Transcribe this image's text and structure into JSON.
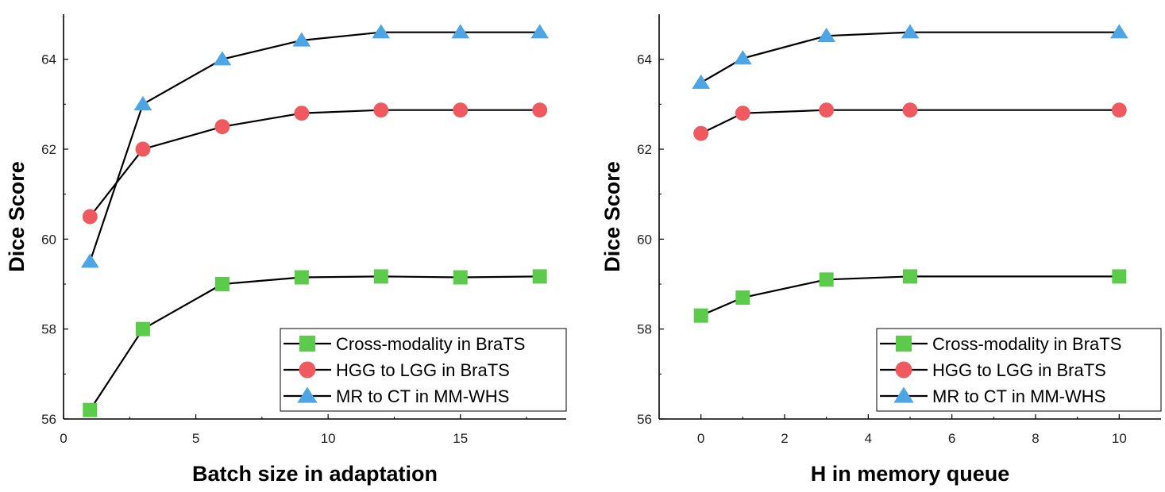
{
  "chart_data": [
    {
      "type": "line",
      "xlabel": "Batch size in adaptation",
      "ylabel": "Dice Score",
      "xlim": [
        0,
        19
      ],
      "ylim": [
        56,
        65
      ],
      "xticks": [
        0,
        5,
        10,
        15
      ],
      "yticks": [
        56,
        58,
        60,
        62,
        64
      ],
      "legend_position": "bottom-right",
      "series": [
        {
          "name": "Cross-modality in BraTS",
          "marker": "square",
          "color": "#5CCB4C",
          "x": [
            1,
            3,
            6,
            9,
            12,
            15,
            18
          ],
          "y": [
            56.2,
            58.0,
            59.0,
            59.15,
            59.17,
            59.15,
            59.17
          ]
        },
        {
          "name": "HGG to LGG in BraTS",
          "marker": "circle",
          "color": "#EE5A5F",
          "x": [
            1,
            3,
            6,
            9,
            12,
            15,
            18
          ],
          "y": [
            60.5,
            62.0,
            62.5,
            62.8,
            62.87,
            62.87,
            62.87
          ]
        },
        {
          "name": "MR to CT in MM-WHS",
          "marker": "triangle",
          "color": "#4DA6E3",
          "x": [
            1,
            3,
            6,
            9,
            12,
            15,
            18
          ],
          "y": [
            59.5,
            63.0,
            64.0,
            64.42,
            64.6,
            64.6,
            64.6
          ]
        }
      ]
    },
    {
      "type": "line",
      "xlabel": "H in memory queue",
      "ylabel": "Dice Score",
      "xlim": [
        -1,
        11
      ],
      "ylim": [
        56,
        65
      ],
      "xticks": [
        0,
        2,
        4,
        6,
        8,
        10
      ],
      "yticks": [
        56,
        58,
        60,
        62,
        64
      ],
      "legend_position": "bottom-right",
      "series": [
        {
          "name": "Cross-modality in BraTS",
          "marker": "square",
          "color": "#5CCB4C",
          "x": [
            0,
            1,
            3,
            5,
            10
          ],
          "y": [
            58.3,
            58.7,
            59.1,
            59.17,
            59.17
          ]
        },
        {
          "name": "HGG to LGG in BraTS",
          "marker": "circle",
          "color": "#EE5A5F",
          "x": [
            0,
            1,
            3,
            5,
            10
          ],
          "y": [
            62.35,
            62.8,
            62.87,
            62.87,
            62.87
          ]
        },
        {
          "name": "MR to CT in MM-WHS",
          "marker": "triangle",
          "color": "#4DA6E3",
          "x": [
            0,
            1,
            3,
            5,
            10
          ],
          "y": [
            63.48,
            64.02,
            64.52,
            64.6,
            64.6
          ]
        }
      ]
    }
  ]
}
